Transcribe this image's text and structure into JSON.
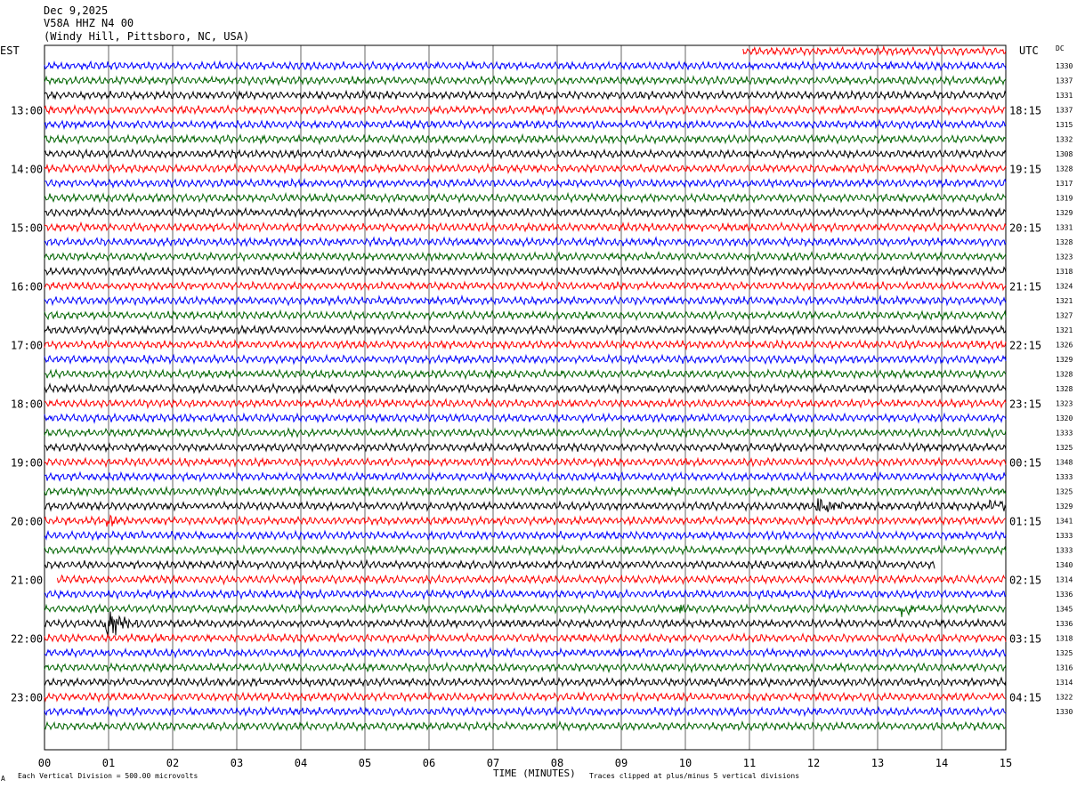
{
  "header": {
    "date": "Dec 9,2025",
    "station": "V58A HHZ N4 00",
    "location": "(Windy Hill, Pittsboro, NC, USA)"
  },
  "left_axis_title": "EST",
  "right_axis_title": "UTC",
  "dc_title": "DC",
  "footer": {
    "x_title": "TIME (MINUTES)",
    "scale_note": "Each Vertical Division =  500.00 microvolts",
    "clip_note": "Traces clipped at plus/minus 5 vertical divisions",
    "corner_mark": "A"
  },
  "colors": {
    "cycle": [
      "#ff0000",
      "#0000ff",
      "#006400",
      "#000000"
    ]
  },
  "chart_data": {
    "type": "line",
    "title": "Dec 9,2025",
    "xlabel": "TIME (MINUTES)",
    "ylabel": "",
    "xlim": [
      0,
      15
    ],
    "x_ticks": [
      "00",
      "01",
      "02",
      "03",
      "04",
      "05",
      "06",
      "07",
      "08",
      "09",
      "10",
      "11",
      "12",
      "13",
      "14",
      "15"
    ],
    "rows": 47,
    "est_labels": [
      "13:00",
      "14:00",
      "15:00",
      "16:00",
      "17:00",
      "18:00",
      "19:00",
      "20:00",
      "21:00",
      "22:00",
      "23:00"
    ],
    "utc_labels": [
      "18:15",
      "19:15",
      "20:15",
      "21:15",
      "22:15",
      "23:15",
      "00:15",
      "01:15",
      "02:15",
      "03:15",
      "04:15"
    ],
    "dc_values": [
      "",
      "1330",
      "1337",
      "1331",
      "1337",
      "1315",
      "1332",
      "1308",
      "1328",
      "1317",
      "1319",
      "1329",
      "1331",
      "1328",
      "1323",
      "1318",
      "1324",
      "1321",
      "1327",
      "1321",
      "1326",
      "1329",
      "1328",
      "1328",
      "1323",
      "1320",
      "1333",
      "1325",
      "1348",
      "1333",
      "1325",
      "1329",
      "1341",
      "1333",
      "1333",
      "1340",
      "1314",
      "1336",
      "1345",
      "1336",
      "1318",
      "1325",
      "1316",
      "1314",
      "1322",
      "1330",
      ""
    ],
    "trace_start_min": 10.9,
    "trace_end_min": 13.9,
    "trace_end_row": 35,
    "trace_restart_min": 0.2,
    "trace_restart_row": 36,
    "events": [
      {
        "row": 31,
        "minute": 12.1,
        "amplitude": 2.2
      },
      {
        "row": 31,
        "minute": 14.8,
        "amplitude": 0.9
      },
      {
        "row": 32,
        "minute": 1.0,
        "amplitude": 0.9
      },
      {
        "row": 39,
        "minute": 1.0,
        "amplitude": 3.0
      },
      {
        "row": 38,
        "minute": 9.9,
        "amplitude": 0.8
      },
      {
        "row": 38,
        "minute": 13.4,
        "amplitude": 1.6
      },
      {
        "row": 30,
        "minute": 11.2,
        "amplitude": 0.6
      }
    ]
  }
}
